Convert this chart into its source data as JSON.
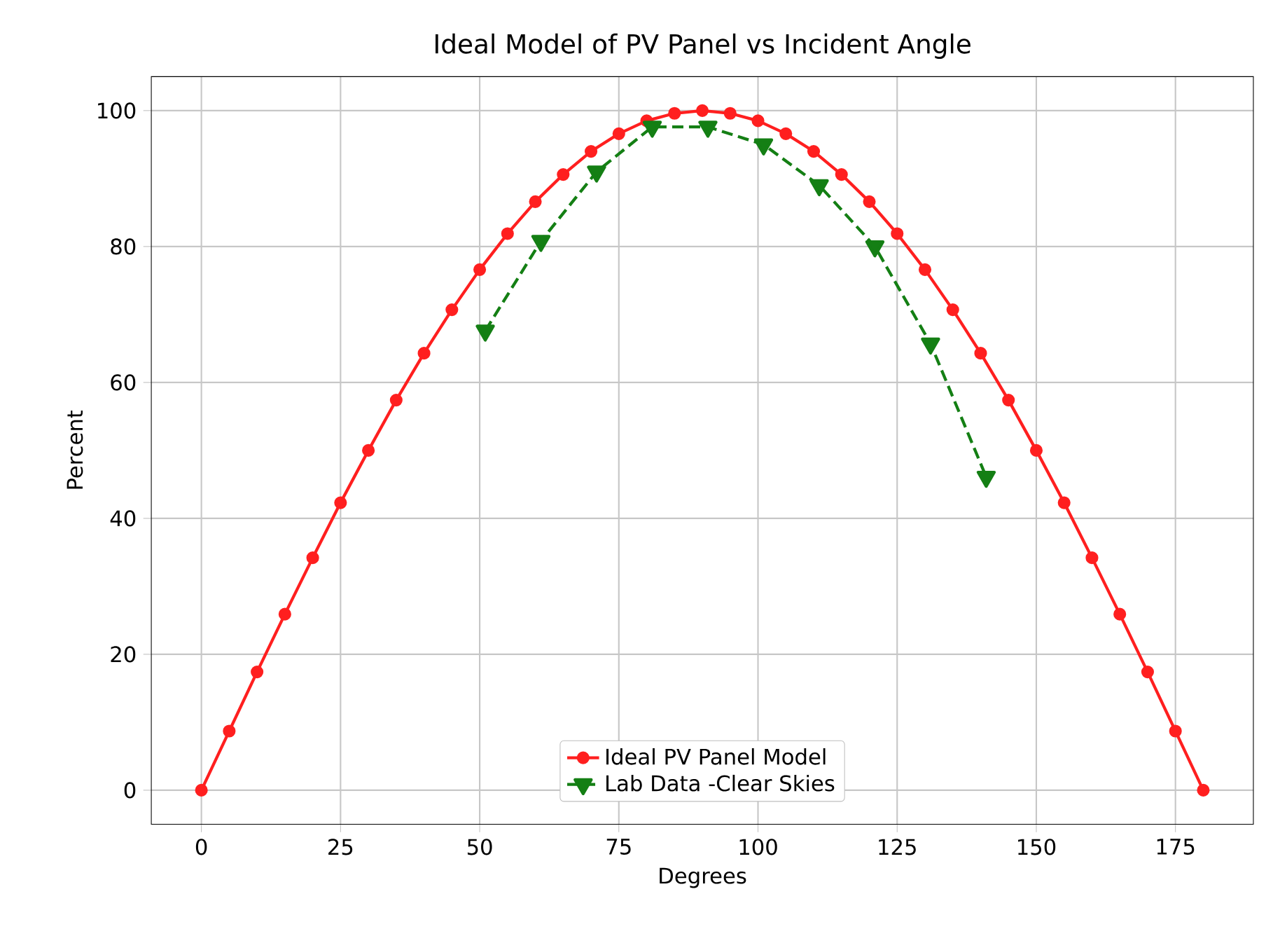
{
  "chart_data": {
    "type": "line",
    "title": "Ideal Model of PV Panel vs Incident Angle",
    "xlabel": "Degrees",
    "ylabel": "Percent",
    "xlim": [
      -9,
      189
    ],
    "ylim": [
      -5,
      105
    ],
    "xticks": [
      0,
      25,
      50,
      75,
      100,
      125,
      150,
      175
    ],
    "yticks": [
      0,
      20,
      40,
      60,
      80,
      100
    ],
    "grid": true,
    "legend": "bottom",
    "series": [
      {
        "name": "Ideal PV Panel Model",
        "color": "#ff1f1f",
        "marker": "circle",
        "line_style": "solid",
        "x": [
          0,
          5,
          10,
          15,
          20,
          25,
          30,
          35,
          40,
          45,
          50,
          55,
          60,
          65,
          70,
          75,
          80,
          85,
          90,
          95,
          100,
          105,
          110,
          115,
          120,
          125,
          130,
          135,
          140,
          145,
          150,
          155,
          160,
          165,
          170,
          175,
          180
        ],
        "values": [
          0,
          8.7,
          17.4,
          25.9,
          34.2,
          42.3,
          50,
          57.4,
          64.3,
          70.7,
          76.6,
          81.9,
          86.6,
          90.6,
          94,
          96.6,
          98.5,
          99.6,
          100,
          99.6,
          98.5,
          96.6,
          94,
          90.6,
          86.6,
          81.9,
          76.6,
          70.7,
          64.3,
          57.4,
          50,
          42.3,
          34.2,
          25.9,
          17.4,
          8.7,
          0
        ]
      },
      {
        "name": "Lab Data -Clear Skies",
        "color": "#147f14",
        "marker": "triangle",
        "line_style": "dashed",
        "x": [
          51,
          61,
          71,
          81,
          91,
          101,
          111,
          121,
          131,
          141
        ],
        "values": [
          67.6,
          80.8,
          91.0,
          97.6,
          97.6,
          95.0,
          89.0,
          80.0,
          65.7,
          46.1
        ]
      }
    ]
  }
}
